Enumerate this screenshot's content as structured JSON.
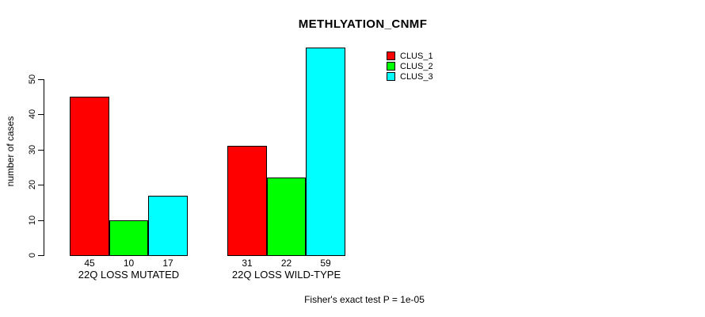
{
  "chart_data": {
    "type": "bar",
    "title": "METHLYATION_CNMF",
    "ylabel": "number of cases",
    "xlabel": "",
    "categories": [
      "22Q LOSS MUTATED",
      "22Q LOSS WILD-TYPE"
    ],
    "series": [
      {
        "name": "CLUS_1",
        "color": "#ff0000",
        "values": [
          45,
          31
        ]
      },
      {
        "name": "CLUS_2",
        "color": "#00ff00",
        "values": [
          10,
          22
        ]
      },
      {
        "name": "CLUS_3",
        "color": "#00ffff",
        "values": [
          17,
          59
        ]
      }
    ],
    "bar_value_labels": [
      [
        "45",
        "10",
        "17"
      ],
      [
        "31",
        "22",
        "59"
      ]
    ],
    "yticks": [
      0,
      10,
      20,
      30,
      40,
      50
    ],
    "ylim": [
      0,
      59
    ],
    "grid": false,
    "legend_position": "top-right",
    "annotation": "Fisher's exact test P = 1e-05"
  },
  "colors": {
    "background": "#ffffff",
    "axis": "#000000",
    "text": "#000000"
  }
}
